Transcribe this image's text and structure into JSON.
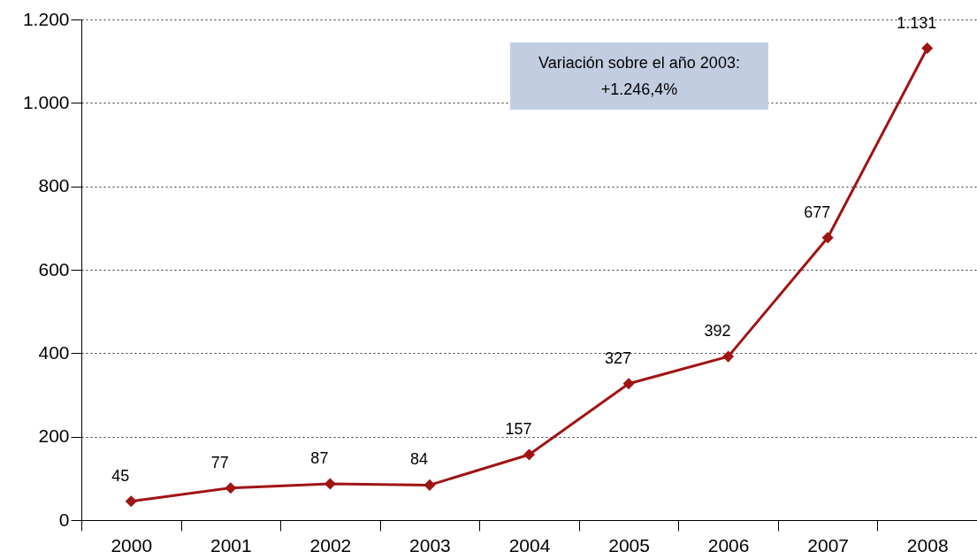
{
  "chart_data": {
    "type": "line",
    "categories": [
      "2000",
      "2001",
      "2002",
      "2003",
      "2004",
      "2005",
      "2006",
      "2007",
      "2008"
    ],
    "series": [
      {
        "color": "#a01414",
        "values": [
          45,
          77,
          87,
          84,
          157,
          327,
          392,
          677,
          1131
        ],
        "value_labels": [
          "45",
          "77",
          "87",
          "84",
          "157",
          "327",
          "392",
          "677",
          "1.131"
        ]
      }
    ],
    "ylim": [
      0,
      1200
    ],
    "yticks": [
      0,
      200,
      400,
      600,
      800,
      {
        "value": 1000,
        "label": "1.000"
      },
      {
        "value": 1200,
        "label": "1.200"
      }
    ],
    "grid": "y",
    "marker": "diamond",
    "line_style": "solid",
    "legend": false,
    "annotations": [
      "Variación sobre el año 2003: +1.246,4%"
    ]
  }
}
